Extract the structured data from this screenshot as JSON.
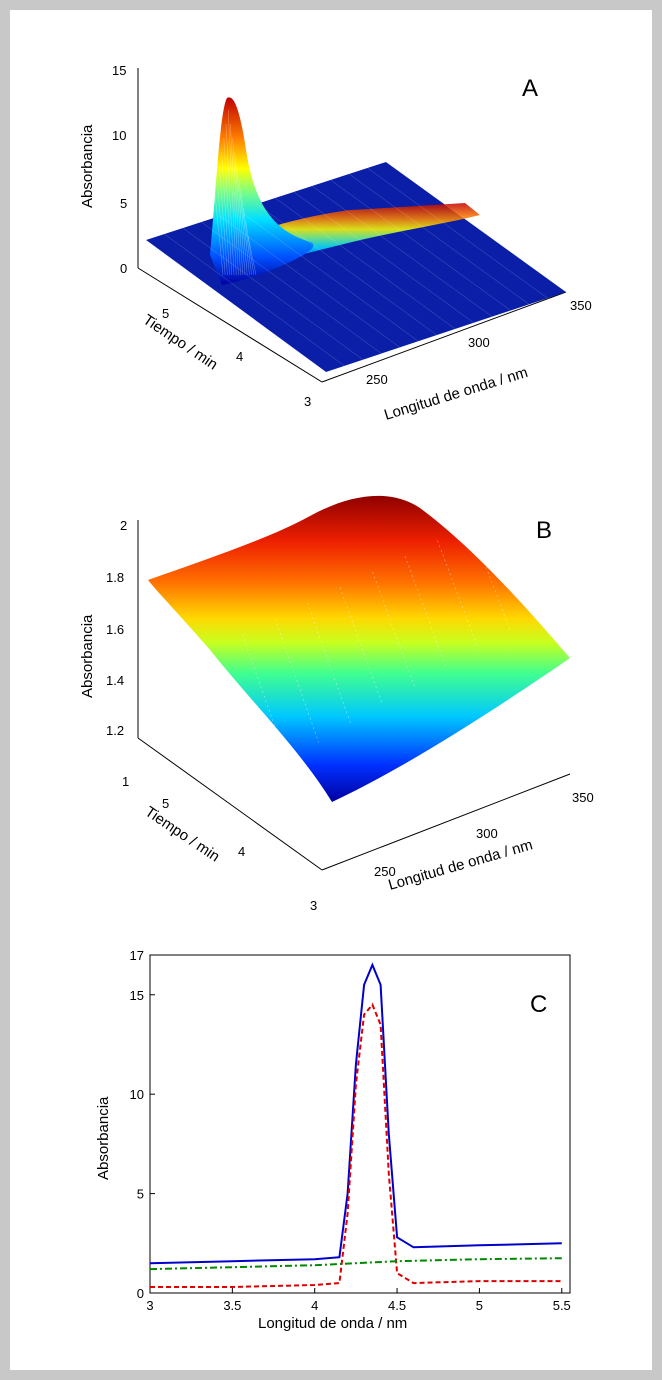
{
  "chart_data": [
    {
      "type": "surface",
      "panel_label": "A",
      "zlabel": "Absorbancia",
      "xlabel": "Longitud de onda / nm",
      "ylabel": "Tiempo / min",
      "x_ticks": [
        "250",
        "300",
        "350"
      ],
      "y_ticks": [
        "3",
        "4",
        "5"
      ],
      "z_ticks": [
        "0",
        "5",
        "10",
        "15"
      ],
      "xlim": [
        220,
        360
      ],
      "ylim": [
        3,
        5.6
      ],
      "zlim": [
        0,
        15
      ],
      "peak": {
        "x": 225,
        "y": 4.4,
        "z": 12.5
      },
      "secondary_ridge": {
        "x": 290,
        "y": 4.4,
        "z": 3.5
      },
      "baseline_z": 1.5,
      "colormap": "jet"
    },
    {
      "type": "surface",
      "panel_label": "B",
      "zlabel": "Absorbancia",
      "xlabel": "Longitud de onda / nm",
      "ylabel": "Tiempo / min",
      "x_ticks": [
        "250",
        "300",
        "350"
      ],
      "y_ticks": [
        "3",
        "4",
        "5"
      ],
      "z_ticks": [
        "1",
        "1.2",
        "1.4",
        "1.6",
        "1.8",
        "2"
      ],
      "xlim": [
        220,
        360
      ],
      "ylim": [
        3,
        5.6
      ],
      "zlim": [
        1,
        2.1
      ],
      "corners": {
        "x_min_y_max": 1.77,
        "x_max_y_max": 2.05,
        "x_min_y_min": 1.0,
        "x_max_y_min": 1.4
      },
      "colormap": "jet"
    },
    {
      "type": "line",
      "panel_label": "C",
      "xlabel": "Longitud de onda / nm",
      "ylabel": "Absorbancia",
      "x_ticks": [
        "3",
        "3.5",
        "4",
        "4.5",
        "5",
        "5.5"
      ],
      "y_ticks": [
        "0",
        "5",
        "10",
        "15",
        "17"
      ],
      "xlim": [
        3,
        5.55
      ],
      "ylim": [
        0,
        17
      ],
      "series": [
        {
          "style": "solid",
          "color": "#0000cc",
          "x": [
            3.0,
            3.5,
            4.0,
            4.15,
            4.2,
            4.25,
            4.3,
            4.35,
            4.4,
            4.45,
            4.5,
            4.6,
            5.0,
            5.5
          ],
          "y": [
            1.5,
            1.6,
            1.7,
            1.8,
            5.0,
            11.5,
            15.5,
            16.5,
            15.5,
            8.0,
            2.8,
            2.3,
            2.4,
            2.5
          ]
        },
        {
          "style": "dashed",
          "color": "#dd0000",
          "x": [
            3.0,
            3.5,
            4.0,
            4.15,
            4.2,
            4.25,
            4.3,
            4.35,
            4.4,
            4.45,
            4.5,
            4.6,
            5.0,
            5.5
          ],
          "y": [
            0.3,
            0.3,
            0.4,
            0.5,
            4.0,
            10.5,
            14.0,
            14.5,
            13.5,
            6.0,
            1.0,
            0.5,
            0.6,
            0.6
          ]
        },
        {
          "style": "dashdot",
          "color": "#008800",
          "x": [
            3.0,
            3.5,
            4.0,
            4.5,
            5.0,
            5.5
          ],
          "y": [
            1.2,
            1.3,
            1.4,
            1.6,
            1.7,
            1.75
          ]
        }
      ]
    }
  ]
}
